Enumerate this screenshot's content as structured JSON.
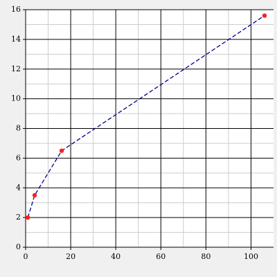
{
  "chart_data": {
    "type": "line",
    "x": [
      1,
      4,
      16,
      106
    ],
    "series": [
      {
        "color": "#00008b",
        "marker_color": "#ff2020",
        "values": [
          2,
          3.5,
          6.5,
          15.6
        ]
      }
    ],
    "xlim": [
      0,
      110
    ],
    "xticks": [
      0,
      20,
      40,
      60,
      80,
      100
    ],
    "xminorticks": [
      10,
      30,
      50,
      70,
      90
    ],
    "ylim": [
      0,
      16
    ],
    "yticks": [
      0,
      2,
      4,
      6,
      8,
      10,
      12,
      14,
      16
    ],
    "yminorticks": [
      1,
      3,
      5,
      7,
      9,
      11,
      13,
      15
    ],
    "grid": true,
    "dashed": true
  }
}
